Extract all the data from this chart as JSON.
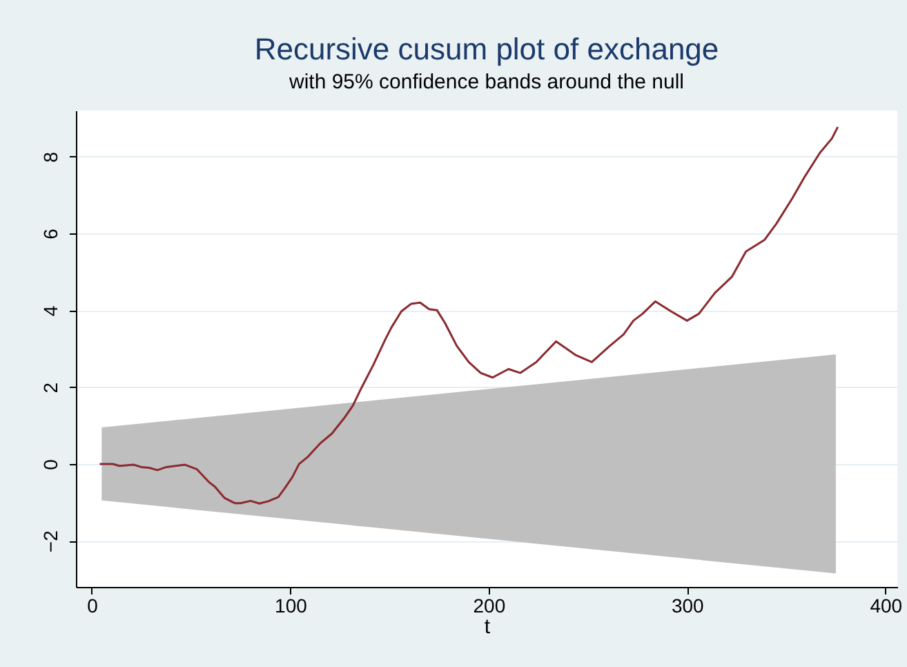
{
  "chart_data": {
    "type": "line",
    "title": "Recursive cusum plot of exchange",
    "subtitle": "with 95% confidence bands around the null",
    "xlabel": "t",
    "xlim": [
      -8,
      406
    ],
    "xticks": [
      0,
      100,
      200,
      300,
      400
    ],
    "ylim": [
      -3.2,
      9.2
    ],
    "yticks": [
      -2,
      0,
      2,
      4,
      6,
      8
    ],
    "grid": "y",
    "series": [
      {
        "type": "area",
        "color": "#bfbfbf",
        "x": [
          5,
          375
        ],
        "values": [
          0.95,
          2.85
        ]
      },
      {
        "type": "area",
        "color": "#bfbfbf",
        "x": [
          5,
          375
        ],
        "values": [
          -0.95,
          -2.85
        ]
      },
      {
        "color": "#8b2a2e",
        "x": [
          4,
          10.6,
          14,
          21,
          25,
          29,
          33,
          37.6,
          47,
          53,
          59,
          62,
          67,
          72,
          75,
          80,
          84.5,
          89,
          94,
          97,
          101,
          104.5,
          109,
          115,
          121,
          127,
          131.5,
          136,
          142,
          148,
          151,
          156,
          161,
          165.5,
          170,
          174,
          178,
          184,
          190,
          196,
          202,
          210,
          216,
          224,
          234,
          244,
          252,
          261,
          268,
          273,
          277.6,
          284,
          292,
          300,
          306,
          314,
          322.6,
          329.7,
          339,
          345,
          353,
          359,
          367,
          373,
          376
        ],
        "values": [
          0,
          0,
          -0.05,
          -0.02,
          -0.08,
          -0.1,
          -0.16,
          -0.08,
          -0.02,
          -0.14,
          -0.47,
          -0.59,
          -0.89,
          -1.02,
          -1.02,
          -0.96,
          -1.03,
          -0.97,
          -0.86,
          -0.65,
          -0.35,
          0,
          0.19,
          0.53,
          0.79,
          1.18,
          1.51,
          1.99,
          2.59,
          3.25,
          3.55,
          3.97,
          4.17,
          4.2,
          4.03,
          4,
          3.67,
          3.07,
          2.65,
          2.37,
          2.25,
          2.47,
          2.37,
          2.65,
          3.19,
          2.83,
          2.65,
          3.07,
          3.37,
          3.73,
          3.91,
          4.23,
          3.97,
          3.73,
          3.91,
          4.45,
          4.87,
          5.53,
          5.83,
          6.25,
          6.91,
          7.45,
          8.1,
          8.47,
          8.77
        ]
      }
    ]
  }
}
